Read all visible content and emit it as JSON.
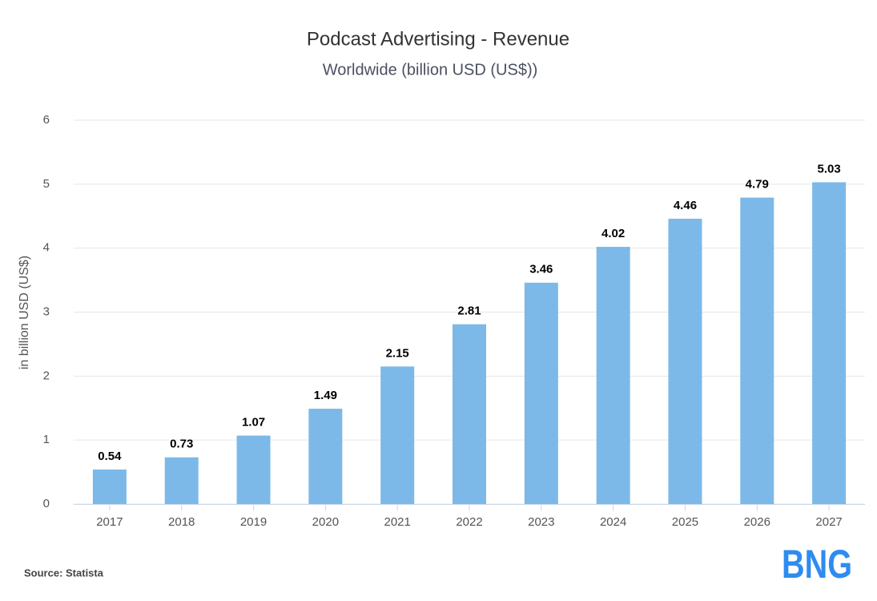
{
  "chart_data": {
    "type": "bar",
    "title": "Podcast Advertising - Revenue",
    "subtitle": "Worldwide (billion USD (US$))",
    "y_label": "in billion USD (US$)",
    "categories": [
      "2017",
      "2018",
      "2019",
      "2020",
      "2021",
      "2022",
      "2023",
      "2024",
      "2025",
      "2026",
      "2027"
    ],
    "values": [
      0.54,
      0.73,
      1.07,
      1.49,
      2.15,
      2.81,
      3.46,
      4.02,
      4.46,
      4.79,
      5.03
    ],
    "color": "#7cb9e8",
    "ylim": [
      0,
      6
    ],
    "yticks": [
      0,
      1,
      2,
      3,
      4,
      5,
      6
    ],
    "grid": true
  },
  "footer": {
    "source": "Source: Statista",
    "logo": "BNG"
  }
}
